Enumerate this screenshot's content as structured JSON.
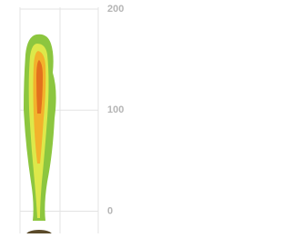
{
  "chart_data": {
    "type": "contour",
    "ylim": [
      -22,
      209
    ],
    "yticks": [
      0,
      100,
      200
    ],
    "grid": true
  }
}
